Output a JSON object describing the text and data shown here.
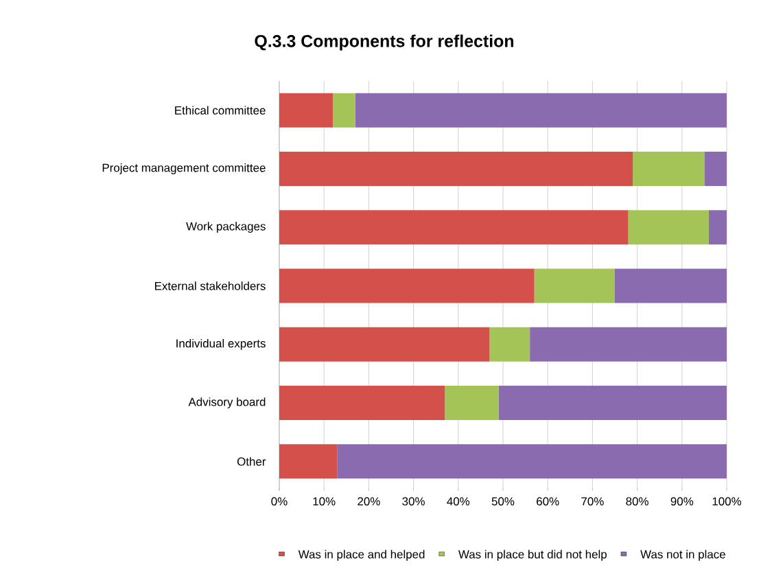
{
  "chart_data": {
    "type": "bar",
    "title": "Q.3.3 Components for reflection",
    "orientation": "horizontal",
    "stacked": true,
    "categories": [
      "Ethical committee",
      "Project management committee",
      "Work packages",
      "External stakeholders",
      "Individual experts",
      "Advisory board",
      "Other"
    ],
    "series": [
      {
        "name": "Was in place and helped",
        "color": "#d4504a",
        "values": [
          12,
          79,
          78,
          57,
          47,
          37,
          13
        ]
      },
      {
        "name": "Was in place but did not help",
        "color": "#a4c457",
        "values": [
          5,
          16,
          18,
          18,
          9,
          12,
          0
        ]
      },
      {
        "name": "Was not in place",
        "color": "#8a6bb0",
        "values": [
          83,
          5,
          4,
          25,
          44,
          51,
          87
        ]
      }
    ],
    "xlim": [
      0,
      100
    ],
    "xticks": [
      {
        "value": 0,
        "label": "0%"
      },
      {
        "value": 10,
        "label": "10%"
      },
      {
        "value": 20,
        "label": "20%"
      },
      {
        "value": 30,
        "label": "30%"
      },
      {
        "value": 40,
        "label": "40%"
      },
      {
        "value": 50,
        "label": "50%"
      },
      {
        "value": 60,
        "label": "60%"
      },
      {
        "value": 70,
        "label": "70%"
      },
      {
        "value": 80,
        "label": "80%"
      },
      {
        "value": 90,
        "label": "90%"
      },
      {
        "value": 100,
        "label": "100%"
      }
    ],
    "grid": "x",
    "legend": "bottom"
  }
}
